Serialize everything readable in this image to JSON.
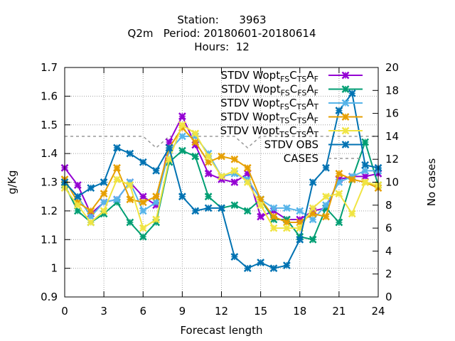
{
  "chart_data": {
    "type": "line",
    "title_lines": [
      "Station:      3963",
      "Q2m   Period: 20180601-20180614",
      "Hours:  12"
    ],
    "xlabel": "Forecast length",
    "ylabel": "g/Kg",
    "y2label": "No cases",
    "xlim": [
      0,
      24
    ],
    "ylim": [
      0.9,
      1.7
    ],
    "y2lim": [
      0,
      20
    ],
    "x_ticks": [
      "0",
      "3",
      "6",
      "9",
      "12",
      "15",
      "18",
      "21",
      "24"
    ],
    "y_ticks": [
      "0.9",
      "1",
      "1.1",
      "1.2",
      "1.3",
      "1.4",
      "1.5",
      "1.6",
      "1.7"
    ],
    "y2_ticks": [
      "0",
      "2",
      "4",
      "6",
      "8",
      "10",
      "12",
      "14",
      "16",
      "18",
      "20"
    ],
    "grid": true,
    "legend_position": "top-right",
    "x": [
      0,
      1,
      2,
      3,
      4,
      5,
      6,
      7,
      8,
      9,
      10,
      11,
      12,
      13,
      14,
      15,
      16,
      17,
      18,
      19,
      20,
      21,
      22,
      23,
      24
    ],
    "series": [
      {
        "name_base": "STDV Wopt",
        "sub1": "FS",
        "mid": "C",
        "sub2": "TS",
        "mid2": "A",
        "sub3": "F",
        "color": "#9400d3",
        "axis": "y1",
        "marker": "x",
        "values": [
          1.35,
          1.29,
          1.19,
          1.23,
          1.24,
          1.3,
          1.25,
          1.22,
          1.44,
          1.53,
          1.43,
          1.33,
          1.31,
          1.3,
          1.33,
          1.18,
          1.2,
          1.17,
          1.17,
          1.2,
          1.21,
          1.31,
          1.32,
          1.32,
          1.33
        ]
      },
      {
        "name_base": "STDV Wopt",
        "sub1": "FS",
        "mid": "C",
        "sub2": "FS",
        "mid2": "A",
        "sub3": "F",
        "color": "#009e73",
        "axis": "y1",
        "marker": "x",
        "values": [
          1.29,
          1.2,
          1.16,
          1.19,
          1.23,
          1.16,
          1.11,
          1.16,
          1.37,
          1.41,
          1.39,
          1.25,
          1.21,
          1.22,
          1.2,
          1.24,
          1.17,
          1.17,
          1.11,
          1.1,
          1.21,
          1.16,
          1.31,
          1.44,
          1.29
        ]
      },
      {
        "name_base": "STDV Wopt",
        "sub1": "FS",
        "mid": "C",
        "sub2": "TS",
        "mid2": "A",
        "sub3": "T",
        "color": "#56b4e9",
        "axis": "y1",
        "marker": "x",
        "values": [
          1.3,
          1.25,
          1.18,
          1.23,
          1.24,
          1.3,
          1.2,
          1.23,
          1.41,
          1.46,
          1.46,
          1.4,
          1.32,
          1.33,
          1.31,
          1.24,
          1.21,
          1.21,
          1.2,
          1.17,
          1.22,
          1.3,
          1.32,
          1.34,
          1.34
        ]
      },
      {
        "name_base": "STDV Wopt",
        "sub1": "TS",
        "mid": "C",
        "sub2": "TS",
        "mid2": "A",
        "sub3": "F",
        "color": "#e69f00",
        "axis": "y1",
        "marker": "x",
        "values": [
          1.31,
          1.23,
          1.2,
          1.26,
          1.35,
          1.24,
          1.23,
          1.25,
          1.42,
          1.49,
          1.44,
          1.37,
          1.39,
          1.38,
          1.35,
          1.24,
          1.18,
          1.16,
          1.16,
          1.19,
          1.18,
          1.33,
          1.31,
          1.3,
          1.28
        ]
      },
      {
        "name_base": "STDV Wopt",
        "sub1": "TS",
        "mid": "C",
        "sub2": "TS",
        "mid2": "A",
        "sub3": "T",
        "color": "#f0e442",
        "axis": "y1",
        "marker": "x",
        "values": [
          1.28,
          1.22,
          1.16,
          1.2,
          1.31,
          1.29,
          1.14,
          1.17,
          1.38,
          1.5,
          1.47,
          1.39,
          1.32,
          1.34,
          1.3,
          1.22,
          1.14,
          1.14,
          1.14,
          1.21,
          1.25,
          1.26,
          1.19,
          1.3,
          1.29
        ]
      },
      {
        "name": "STDV OBS",
        "color": "#0072b2",
        "axis": "y1",
        "marker": "x",
        "values": [
          1.3,
          1.25,
          1.28,
          1.3,
          1.42,
          1.4,
          1.37,
          1.34,
          1.42,
          1.25,
          1.2,
          1.21,
          1.21,
          1.04,
          1.0,
          1.02,
          1.0,
          1.01,
          1.1,
          1.3,
          1.35,
          1.55,
          1.61,
          1.36,
          1.35
        ]
      },
      {
        "name": "CASES",
        "color": "#999999",
        "axis": "y2",
        "dashed": true,
        "values": [
          14,
          14,
          14,
          14,
          14,
          14,
          14,
          13,
          14,
          14,
          14,
          14,
          14,
          14,
          13,
          14,
          14,
          14,
          14,
          14,
          14,
          14,
          14,
          14,
          14
        ]
      }
    ]
  }
}
